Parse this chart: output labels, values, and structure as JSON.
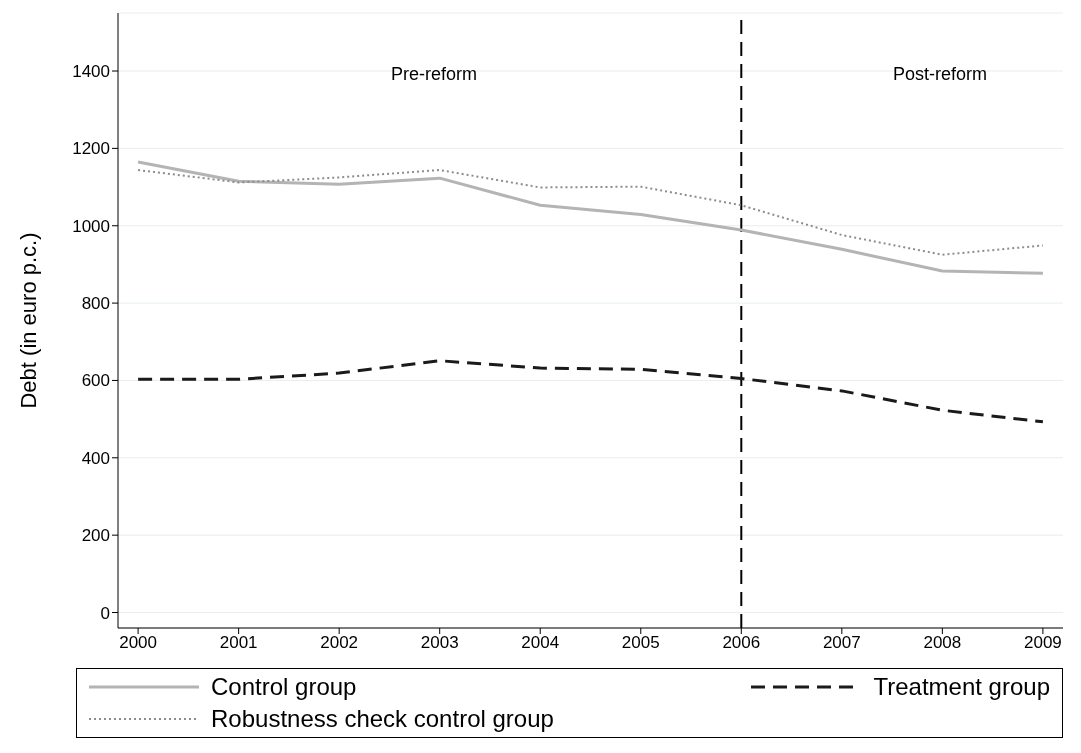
{
  "chart_data": {
    "type": "line",
    "ylabel": "Debt (in euro p.c.)",
    "x": [
      2000,
      2001,
      2002,
      2003,
      2004,
      2005,
      2006,
      2007,
      2008,
      2009
    ],
    "xlim": [
      1999.8,
      2009.2
    ],
    "xticks": [
      2000,
      2001,
      2002,
      2003,
      2004,
      2005,
      2006,
      2007,
      2008,
      2009
    ],
    "ylim": [
      -40,
      1550
    ],
    "yticks": [
      0,
      200,
      400,
      600,
      800,
      1000,
      1200,
      1400
    ],
    "grid": "y",
    "legend": "bottom",
    "marker": "none",
    "series": [
      {
        "name": "Control group",
        "color": "#b4b4b4",
        "line_style": "solid",
        "values": [
          1165,
          1115,
          1107,
          1123,
          1053,
          1029,
          989,
          939,
          883,
          877
        ]
      },
      {
        "name": "Treatment group",
        "color": "#1a1a1a",
        "line_style": "dashed",
        "values": [
          603,
          603,
          619,
          651,
          632,
          629,
          605,
          573,
          523,
          493
        ]
      },
      {
        "name": "Robustness check control group",
        "color": "#8c8c8c",
        "line_style": "dotted",
        "values": [
          1144,
          1112,
          1125,
          1144,
          1099,
          1101,
          1053,
          976,
          925,
          949
        ]
      }
    ],
    "ref_lines": [
      {
        "axis": "x",
        "value": 2006,
        "color": "#000000",
        "line_style": "dashed"
      }
    ],
    "annotations": [
      "Pre-reform",
      "Post-reform"
    ]
  }
}
